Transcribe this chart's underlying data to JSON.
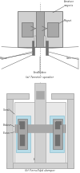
{
  "fig_bg": "#ffffff",
  "panel_a_caption": "(a) Tweeter speaker",
  "panel_b_caption": "(b) Ferrofluid damper",
  "gray_light": "#d0d0d0",
  "gray_mid": "#a8a8a8",
  "gray_dark": "#707070",
  "gray_very_light": "#e8e8e8",
  "blue_light": "#b8dce8",
  "blue_mid": "#7ab8cc",
  "white": "#ffffff",
  "label_color": "#444444",
  "dash_color": "#888888"
}
